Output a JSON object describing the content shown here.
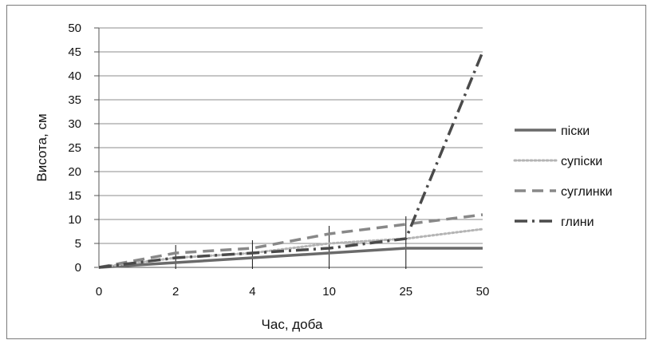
{
  "chart_data": {
    "type": "line",
    "title": "",
    "xlabel": "Час, доба",
    "ylabel": "Висота, см",
    "categories": [
      "0",
      "2",
      "4",
      "10",
      "25",
      "50"
    ],
    "ylim": [
      0,
      50
    ],
    "yticks": [
      "0",
      "5",
      "10",
      "15",
      "20",
      "25",
      "30",
      "35",
      "40",
      "45",
      "50"
    ],
    "grid": true,
    "legend_position": "right",
    "series": [
      {
        "name": "піски",
        "values": [
          0,
          1,
          2,
          3,
          4,
          4
        ],
        "color": "#6a6a6a",
        "style": "solid"
      },
      {
        "name": "супіски",
        "values": [
          0,
          2,
          3,
          5,
          6,
          8
        ],
        "color": "#b4b4b4",
        "style": "dotted"
      },
      {
        "name": "суглинки",
        "values": [
          0,
          3,
          4,
          7,
          9,
          11
        ],
        "color": "#888888",
        "style": "dashed"
      },
      {
        "name": "глини",
        "values": [
          0,
          2,
          3,
          4,
          6,
          45
        ],
        "color": "#4a4a4a",
        "style": "dashdot"
      }
    ]
  }
}
